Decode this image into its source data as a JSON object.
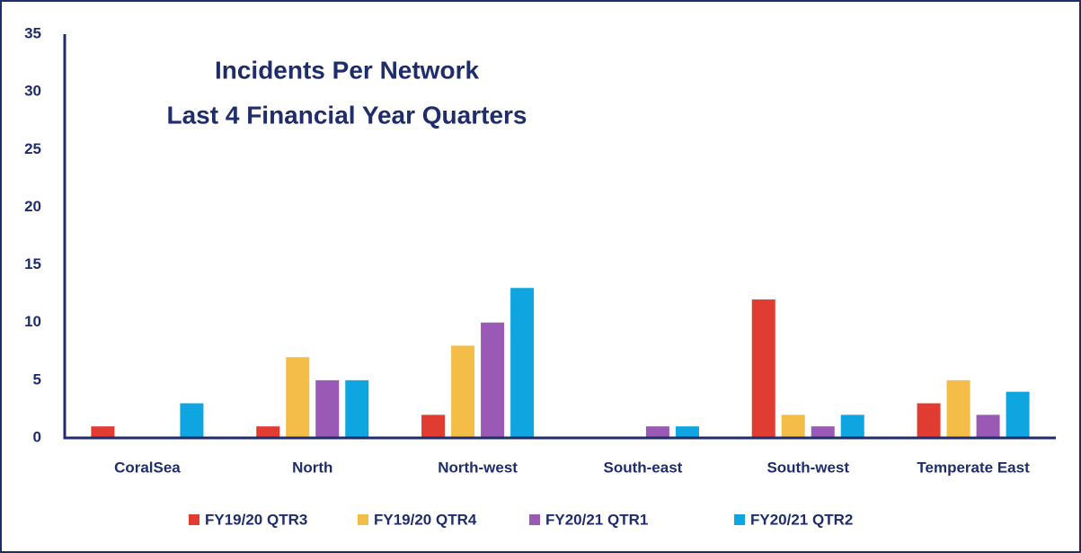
{
  "chart_data": {
    "type": "bar",
    "title": "Incidents Per Network",
    "subtitle": "Last 4 Financial Year Quarters",
    "categories": [
      "CoralSea",
      "North",
      "North-west",
      "South-east",
      "South-west",
      "Temperate East"
    ],
    "series": [
      {
        "name": "FY19/20 QTR3",
        "color": "#e03c31",
        "values": [
          1,
          1,
          2,
          0,
          12,
          3
        ]
      },
      {
        "name": "FY19/20 QTR4",
        "color": "#f4bd48",
        "values": [
          0,
          7,
          8,
          0,
          2,
          5
        ]
      },
      {
        "name": "FY20/21 QTR1",
        "color": "#9b59b6",
        "values": [
          0,
          5,
          10,
          1,
          1,
          2
        ]
      },
      {
        "name": "FY20/21 QTR2",
        "color": "#0fa5e0",
        "values": [
          3,
          5,
          13,
          1,
          2,
          4
        ]
      }
    ],
    "ylim": [
      0,
      35
    ],
    "yticks": [
      0,
      5,
      10,
      15,
      20,
      25,
      30,
      35
    ],
    "grid": false,
    "legend": "bottom"
  }
}
